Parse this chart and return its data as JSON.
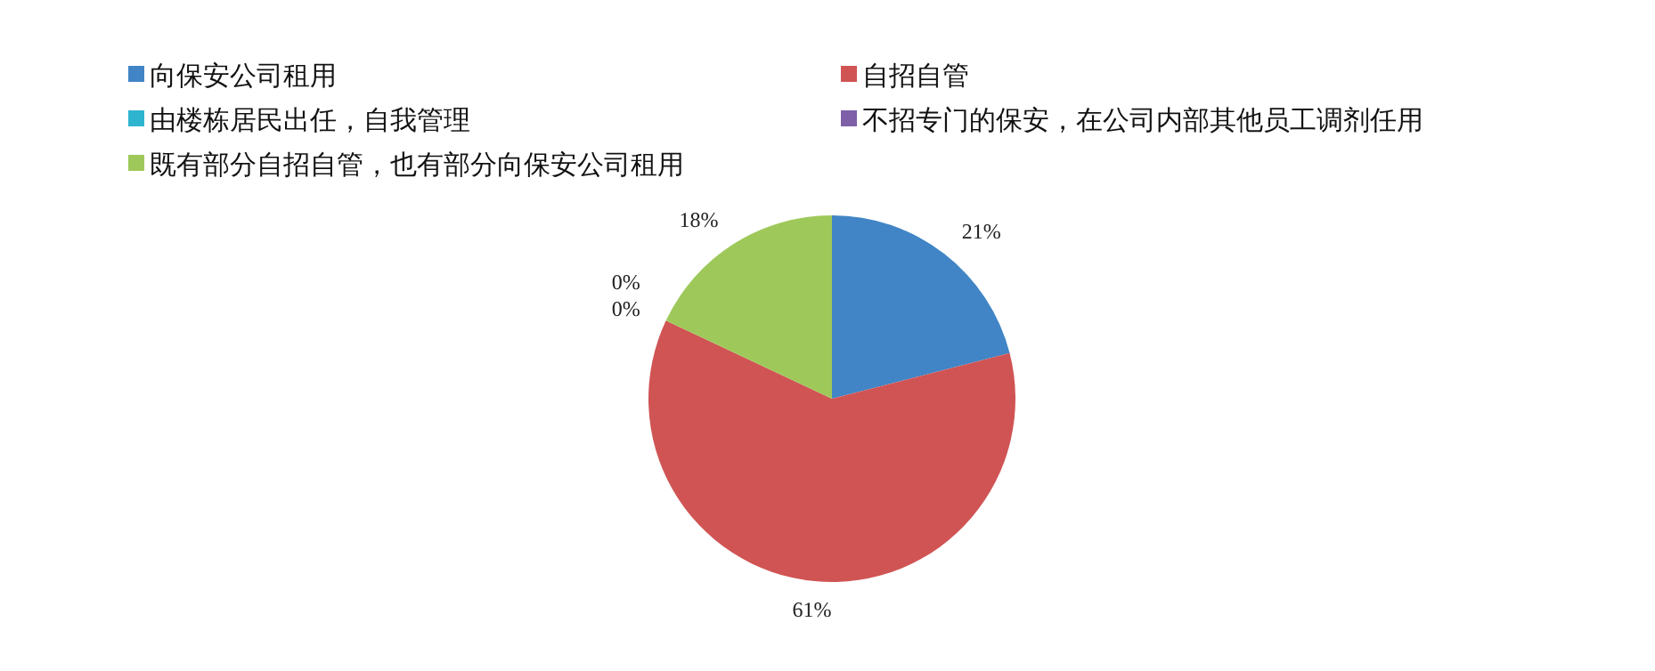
{
  "chart_data": {
    "type": "pie",
    "categories": [
      "向保安公司租用",
      "自招自管",
      "由楼栋居民出任，自我管理",
      "不招专门的保安，在公司内部其他员工调剂任用",
      "既有部分自招自管，也有部分向保安公司租用"
    ],
    "values": [
      21,
      61,
      0,
      0,
      18
    ],
    "colors": [
      "#4185c6",
      "#d05454",
      "#2fb4cf",
      "#7e5fa8",
      "#9ec95a"
    ],
    "value_labels": [
      "21%",
      "61%",
      "0%",
      "0%",
      "18%"
    ],
    "legend": "top"
  }
}
